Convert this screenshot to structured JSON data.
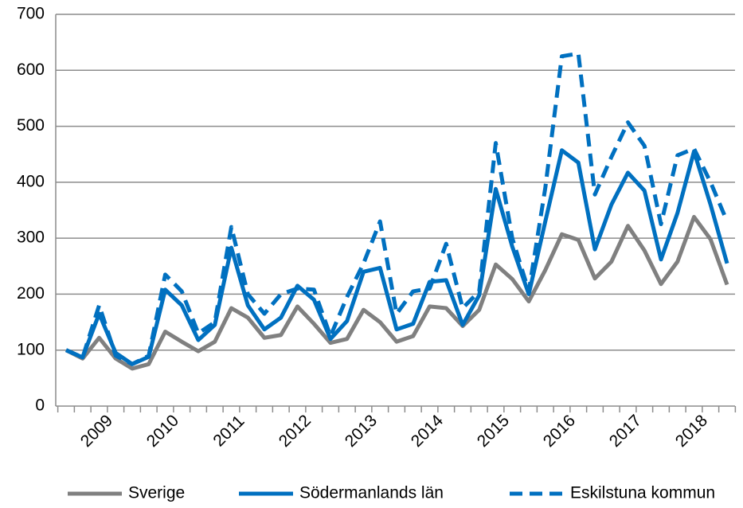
{
  "chart_data": {
    "type": "line",
    "categories": [
      null,
      "2009",
      null,
      null,
      null,
      "2010",
      null,
      null,
      null,
      "2011",
      null,
      null,
      null,
      "2012",
      null,
      null,
      null,
      "2013",
      null,
      null,
      null,
      "2014",
      null,
      null,
      null,
      "2015",
      null,
      null,
      null,
      "2016",
      null,
      null,
      null,
      "2017",
      null,
      null,
      null,
      "2018",
      null,
      null,
      null
    ],
    "series": [
      {
        "name": "Sverige",
        "color": "#808080",
        "dash": false,
        "values": [
          100,
          85,
          122,
          85,
          67,
          75,
          133,
          115,
          98,
          115,
          175,
          158,
          122,
          127,
          178,
          147,
          113,
          120,
          172,
          150,
          115,
          125,
          178,
          175,
          143,
          172,
          253,
          227,
          187,
          243,
          307,
          297,
          228,
          258,
          322,
          278,
          218,
          258,
          338,
          298,
          217
        ]
      },
      {
        "name": "Södermanlands län",
        "color": "#0070c0",
        "dash": false,
        "values": [
          100,
          87,
          165,
          95,
          75,
          88,
          208,
          180,
          118,
          145,
          283,
          180,
          137,
          158,
          215,
          190,
          120,
          152,
          240,
          247,
          137,
          147,
          222,
          225,
          145,
          198,
          388,
          285,
          200,
          330,
          457,
          435,
          280,
          360,
          417,
          385,
          262,
          345,
          455,
          360,
          255
        ]
      },
      {
        "name": "Eskilstuna kommun",
        "color": "#0070c0",
        "dash": true,
        "values": [
          100,
          87,
          180,
          90,
          75,
          90,
          235,
          205,
          130,
          150,
          320,
          200,
          165,
          200,
          210,
          208,
          125,
          195,
          255,
          330,
          165,
          205,
          210,
          290,
          175,
          205,
          470,
          300,
          205,
          390,
          625,
          630,
          378,
          445,
          507,
          465,
          325,
          448,
          460,
          400,
          330
        ]
      }
    ],
    "ylim": [
      0,
      700
    ],
    "yticks": [
      0,
      100,
      200,
      300,
      400,
      500,
      600,
      700
    ],
    "grid": true,
    "legend": "bottom"
  }
}
